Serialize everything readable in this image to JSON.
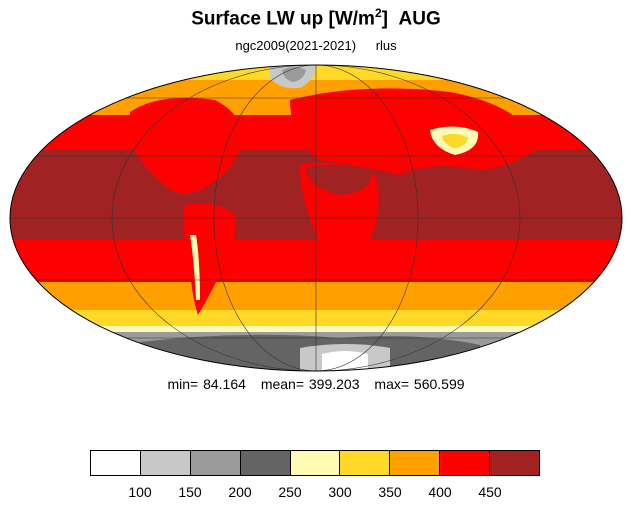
{
  "header": {
    "title_main": "Surface LW up [W/m",
    "title_sup": "2",
    "title_bracket": "]",
    "title_month": "AUG",
    "run_label": "ngc2009(2021-2021)",
    "variable": "rlus"
  },
  "stats": {
    "min": "min=  84.164",
    "mean": "mean= 399.203",
    "max": "max= 560.599"
  },
  "colorbar": {
    "colors": [
      "#ffffff",
      "#c8c8c8",
      "#9b9b9b",
      "#646464",
      "#fffab4",
      "#ffd828",
      "#ffa000",
      "#ff0000",
      "#a02222"
    ],
    "ticks": [
      "100",
      "150",
      "200",
      "250",
      "300",
      "350",
      "400",
      "450"
    ]
  },
  "map": {
    "projection": "mollweide",
    "colors": {
      "ocean_dark": "#a02222",
      "red": "#ff0000",
      "orange": "#ffa000",
      "yellow": "#ffd828",
      "pale": "#fffab4",
      "grey_dark": "#646464",
      "grey_mid": "#9b9b9b",
      "grey_light": "#c8c8c8",
      "white": "#ffffff"
    }
  }
}
